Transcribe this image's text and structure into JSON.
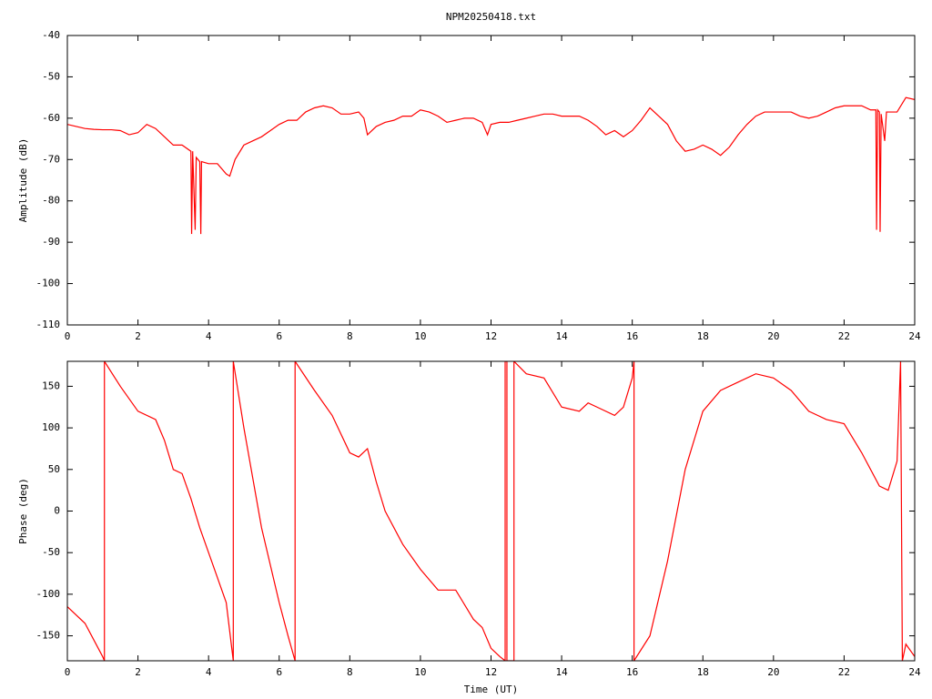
{
  "chart_data": [
    {
      "type": "line",
      "title": "NPM20250418.txt",
      "ylabel": "Amplitude (dB)",
      "color": "#ff0000",
      "x": [
        0,
        0.25,
        0.5,
        0.75,
        1,
        1.25,
        1.5,
        1.75,
        2,
        2.25,
        2.5,
        2.75,
        3,
        3.25,
        3.5,
        3.52,
        3.55,
        3.62,
        3.65,
        3.75,
        3.78,
        3.8,
        4,
        4.25,
        4.5,
        4.6,
        4.75,
        5,
        5.25,
        5.5,
        5.75,
        6,
        6.25,
        6.5,
        6.75,
        7,
        7.25,
        7.5,
        7.75,
        8,
        8.25,
        8.4,
        8.5,
        8.75,
        9,
        9.25,
        9.5,
        9.75,
        10,
        10.25,
        10.5,
        10.75,
        11,
        11.25,
        11.5,
        11.75,
        11.9,
        12,
        12.25,
        12.5,
        12.75,
        13,
        13.25,
        13.5,
        13.75,
        14,
        14.25,
        14.5,
        14.75,
        15,
        15.25,
        15.5,
        15.75,
        16,
        16.25,
        16.5,
        16.75,
        17,
        17.25,
        17.5,
        17.75,
        18,
        18.25,
        18.5,
        18.75,
        19,
        19.25,
        19.5,
        19.75,
        20,
        20.25,
        20.5,
        20.75,
        21,
        21.25,
        21.5,
        21.75,
        22,
        22.25,
        22.5,
        22.75,
        22.9,
        22.92,
        22.95,
        23,
        23.02,
        23.05,
        23.15,
        23.2,
        23.5,
        23.75,
        24
      ],
      "values": [
        -61.5,
        -62,
        -62.5,
        -62.7,
        -62.8,
        -62.8,
        -63,
        -64,
        -63.5,
        -61.5,
        -62.5,
        -64.5,
        -66.5,
        -66.5,
        -68,
        -88,
        -68,
        -87,
        -69.5,
        -70.5,
        -88,
        -70.5,
        -71,
        -71,
        -73.5,
        -74,
        -70,
        -66.5,
        -65.5,
        -64.5,
        -63,
        -61.5,
        -60.5,
        -60.5,
        -58.5,
        -57.5,
        -57,
        -57.5,
        -59,
        -59,
        -58.5,
        -60,
        -64,
        -62,
        -61,
        -60.5,
        -59.5,
        -59.5,
        -58,
        -58.5,
        -59.5,
        -61,
        -60.5,
        -60,
        -60,
        -61,
        -64,
        -61.5,
        -61,
        -61,
        -60.5,
        -60,
        -59.5,
        -59,
        -59,
        -59.5,
        -59.5,
        -59.5,
        -60.5,
        -62,
        -64,
        -63,
        -64.5,
        -63,
        -60.5,
        -57.5,
        -59.5,
        -61.5,
        -65.5,
        -68,
        -67.5,
        -66.5,
        -67.5,
        -69,
        -67,
        -64,
        -61.5,
        -59.5,
        -58.5,
        -58.5,
        -58.5,
        -58.5,
        -59.5,
        -60,
        -59.5,
        -58.5,
        -57.5,
        -57,
        -57,
        -57,
        -58,
        -58,
        -87,
        -58,
        -58.5,
        -87.5,
        -59,
        -65.5,
        -58.5,
        -58.5,
        -55,
        -55.5
      ],
      "xlim": [
        0,
        24
      ],
      "xticks": [
        0,
        2,
        4,
        6,
        8,
        10,
        12,
        14,
        16,
        18,
        20,
        22,
        24
      ],
      "ylim": [
        -110,
        -40
      ],
      "yticks": [
        -110,
        -100,
        -90,
        -80,
        -70,
        -60,
        -50,
        -40
      ]
    },
    {
      "type": "line",
      "xlabel": "Time (UT)",
      "ylabel": "Phase (deg)",
      "color": "#ff0000",
      "x": [
        0,
        0.5,
        1,
        1.05,
        1.05,
        1.5,
        2,
        2.5,
        2.75,
        3,
        3.25,
        3.5,
        3.75,
        4,
        4.25,
        4.5,
        4.7,
        4.7,
        5,
        5.5,
        6,
        6.25,
        6.45,
        6.45,
        7,
        7.5,
        8,
        8.25,
        8.5,
        8.75,
        9,
        9.5,
        10,
        10.5,
        11,
        11.5,
        11.75,
        12,
        12.25,
        12.4,
        12.4,
        12.45,
        12.45,
        12.65,
        12.65,
        13,
        13.5,
        14,
        14.5,
        14.75,
        15,
        15.5,
        15.75,
        16,
        16.05,
        16.05,
        16.5,
        17,
        17.5,
        18,
        18.5,
        19,
        19.5,
        20,
        20.5,
        21,
        21.5,
        22,
        22.5,
        23,
        23.25,
        23.5,
        23.6,
        23.65,
        23.75,
        24
      ],
      "values": [
        -115,
        -135,
        -175,
        -180,
        180,
        150,
        120,
        110,
        85,
        50,
        45,
        15,
        -20,
        -50,
        -80,
        -110,
        -180,
        180,
        100,
        -20,
        -110,
        -150,
        -180,
        180,
        145,
        115,
        70,
        65,
        75,
        35,
        0,
        -40,
        -70,
        -95,
        -95,
        -130,
        -140,
        -165,
        -175,
        -180,
        180,
        180,
        -180,
        -180,
        180,
        165,
        160,
        125,
        120,
        130,
        125,
        115,
        125,
        160,
        180,
        -180,
        -150,
        -60,
        50,
        120,
        145,
        155,
        165,
        160,
        145,
        120,
        110,
        105,
        70,
        30,
        25,
        60,
        180,
        -180,
        -160,
        -175
      ],
      "xlim": [
        0,
        24
      ],
      "xticks": [
        0,
        2,
        4,
        6,
        8,
        10,
        12,
        14,
        16,
        18,
        20,
        22,
        24
      ],
      "ylim": [
        -180,
        180
      ],
      "yticks": [
        -150,
        -100,
        -50,
        0,
        50,
        100,
        150
      ]
    }
  ]
}
